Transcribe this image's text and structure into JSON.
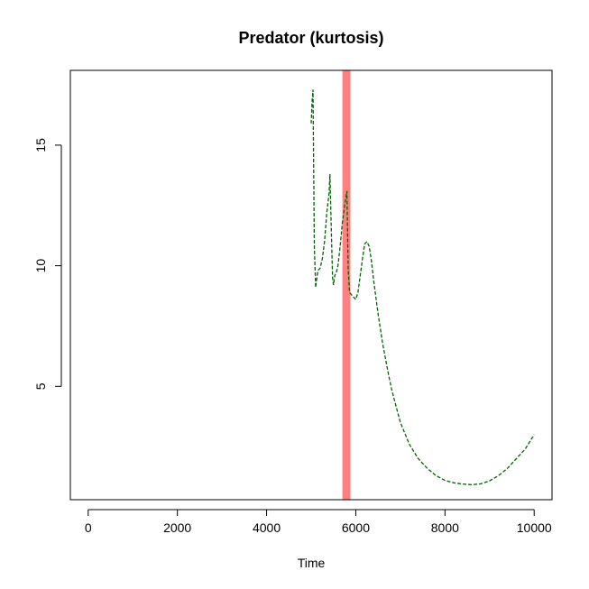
{
  "chart_data": {
    "type": "line",
    "title": "Predator (kurtosis)",
    "xlabel": "Time",
    "ylabel": "",
    "xlim": [
      -400,
      10400
    ],
    "ylim": [
      0.3,
      18.1
    ],
    "x_ticks": [
      0,
      2000,
      4000,
      6000,
      8000,
      10000
    ],
    "x_tick_labels": [
      "0",
      "2000",
      "4000",
      "6000",
      "8000",
      "10000"
    ],
    "y_ticks": [
      5,
      10,
      15
    ],
    "y_tick_labels": [
      "5",
      "10",
      "15"
    ],
    "grid": false,
    "legend": "none",
    "highlight_band": {
      "x_start": 5700,
      "x_end": 5880,
      "color": "#ff8080"
    },
    "series": [
      {
        "color": "#006400",
        "line_style": "dashed",
        "x": [
          5000,
          5020,
          5040,
          5060,
          5070,
          5080,
          5090,
          5100,
          5150,
          5200,
          5250,
          5300,
          5350,
          5400,
          5420,
          5450,
          5480,
          5500,
          5530,
          5560,
          5600,
          5650,
          5700,
          5750,
          5800,
          5830,
          5860,
          5900,
          6000,
          6050,
          6100,
          6150,
          6200,
          6250,
          6300,
          6350,
          6400,
          6500,
          6600,
          6700,
          6800,
          6900,
          7000,
          7200,
          7400,
          7600,
          7800,
          8000,
          8200,
          8400,
          8600,
          8800,
          9000,
          9200,
          9400,
          9600,
          9800,
          10000
        ],
        "y": [
          15.9,
          16.8,
          17.3,
          13.0,
          10.8,
          10.2,
          9.8,
          9.1,
          9.8,
          9.9,
          10.3,
          11.0,
          12.2,
          13.0,
          13.8,
          11.5,
          9.5,
          9.2,
          9.6,
          9.7,
          10.0,
          10.8,
          11.8,
          12.5,
          13.1,
          9.9,
          8.9,
          8.8,
          8.6,
          8.9,
          9.6,
          10.3,
          10.9,
          11.0,
          10.8,
          10.2,
          9.4,
          8.0,
          6.8,
          5.8,
          4.9,
          4.2,
          3.5,
          2.6,
          2.0,
          1.6,
          1.3,
          1.1,
          1.0,
          0.95,
          0.92,
          0.96,
          1.08,
          1.3,
          1.6,
          2.0,
          2.4,
          3.0
        ]
      }
    ]
  }
}
